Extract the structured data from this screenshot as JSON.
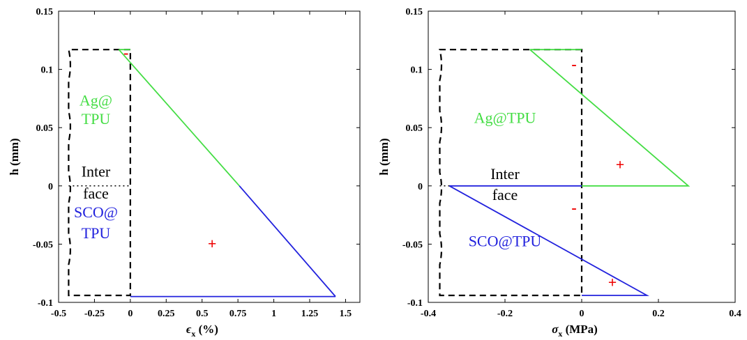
{
  "chart_data": [
    {
      "type": "line",
      "xlabel": "ϵ",
      "xlabel_sub": "x",
      "xlabel_unit": " (%)",
      "ylabel": "h (mm)",
      "xlim": [
        -0.5,
        1.6
      ],
      "ylim": [
        -0.1,
        0.15
      ],
      "xticks": [
        -0.5,
        -0.25,
        0,
        0.25,
        0.5,
        0.75,
        1,
        1.25,
        1.5
      ],
      "xtick_labels": [
        "-0.5",
        "-0.25",
        "0",
        "0.25",
        "0.5",
        "0.75",
        "1",
        "1.25",
        "1.5"
      ],
      "yticks": [
        -0.1,
        -0.05,
        0,
        0.05,
        0.1,
        0.15
      ],
      "ytick_labels": [
        "-0.1",
        "-0.05",
        "0",
        "0.05",
        "0.1",
        "0.15"
      ],
      "colors": {
        "ag": "#44dd44",
        "sco": "#2222dd",
        "outline": "#000000",
        "sign": "#ee0000"
      },
      "series": [
        {
          "name": "Ag@TPU",
          "color": "#44dd44",
          "x": [
            -0.08,
            0.76
          ],
          "y": [
            0.117,
            0.0
          ]
        },
        {
          "name": "Ag@TPU",
          "color": "#44dd44",
          "x": [
            -0.08,
            0.0
          ],
          "y": [
            0.117,
            0.117
          ]
        },
        {
          "name": "SCO@TPU",
          "color": "#2222dd",
          "x": [
            0.76,
            1.43
          ],
          "y": [
            0.0,
            -0.095
          ]
        },
        {
          "name": "SCO@TPU",
          "color": "#2222dd",
          "x": [
            1.43,
            0.0
          ],
          "y": [
            -0.095,
            -0.095
          ]
        }
      ],
      "annotations": [
        {
          "text": "Ag@",
          "x": -0.24,
          "y": 0.069,
          "color": "#44dd44"
        },
        {
          "text": "TPU",
          "x": -0.24,
          "y": 0.053,
          "color": "#44dd44"
        },
        {
          "text": "Inter",
          "x": -0.24,
          "y": 0.008,
          "color": "#000000"
        },
        {
          "text": "face",
          "x": -0.24,
          "y": -0.011,
          "color": "#000000"
        },
        {
          "text": "SCO@",
          "x": -0.24,
          "y": -0.027,
          "color": "#2222dd"
        },
        {
          "text": "TPU",
          "x": -0.24,
          "y": -0.045,
          "color": "#2222dd"
        },
        {
          "text": "+",
          "x": 0.57,
          "y": -0.054,
          "color": "#ee0000"
        },
        {
          "text": "-",
          "x": -0.03,
          "y": 0.11,
          "color": "#ee0000"
        }
      ]
    },
    {
      "type": "line",
      "xlabel": "σ",
      "xlabel_sub": "x",
      "xlabel_unit": " (MPa)",
      "ylabel": "h (mm)",
      "xlim": [
        -0.4,
        0.4
      ],
      "ylim": [
        -0.1,
        0.15
      ],
      "xticks": [
        -0.4,
        -0.2,
        0,
        0.2,
        0.4
      ],
      "xtick_labels": [
        "-0.4",
        "-0.2",
        "0",
        "0.2",
        "0.4"
      ],
      "yticks": [
        -0.1,
        -0.05,
        0,
        0.05,
        0.1,
        0.15
      ],
      "ytick_labels": [
        "-0.1",
        "-0.05",
        "0",
        "0.05",
        "0.1",
        "0.15"
      ],
      "colors": {
        "ag": "#44dd44",
        "sco": "#2222dd",
        "outline": "#000000",
        "sign": "#ee0000"
      },
      "series": [
        {
          "name": "Ag@TPU",
          "color": "#44dd44",
          "x": [
            -0.135,
            0.0,
            0.0
          ],
          "y": [
            0.117,
            0.117,
            0.117
          ]
        },
        {
          "name": "Ag@TPU",
          "color": "#44dd44",
          "x": [
            -0.135,
            0.278,
            0.0
          ],
          "y": [
            0.117,
            0.0,
            0.0
          ]
        },
        {
          "name": "SCO@TPU",
          "color": "#2222dd",
          "x": [
            -0.345,
            0.0
          ],
          "y": [
            0.0,
            0.0
          ]
        },
        {
          "name": "SCO@TPU",
          "color": "#2222dd",
          "x": [
            -0.345,
            0.17,
            0.0
          ],
          "y": [
            0.0,
            -0.094,
            -0.094
          ]
        }
      ],
      "annotations": [
        {
          "text": "Ag@TPU",
          "x": -0.2,
          "y": 0.054,
          "color": "#44dd44"
        },
        {
          "text": "Inter",
          "x": -0.2,
          "y": 0.006,
          "color": "#000000"
        },
        {
          "text": "face",
          "x": -0.2,
          "y": -0.012,
          "color": "#000000"
        },
        {
          "text": "SCO@TPU",
          "x": -0.2,
          "y": -0.052,
          "color": "#2222dd"
        },
        {
          "text": "+",
          "x": 0.1,
          "y": 0.014,
          "color": "#ee0000"
        },
        {
          "text": "+",
          "x": 0.08,
          "y": -0.087,
          "color": "#ee0000"
        },
        {
          "text": "-",
          "x": -0.02,
          "y": 0.1,
          "color": "#ee0000"
        },
        {
          "text": "-",
          "x": -0.02,
          "y": -0.023,
          "color": "#ee0000"
        }
      ]
    }
  ]
}
